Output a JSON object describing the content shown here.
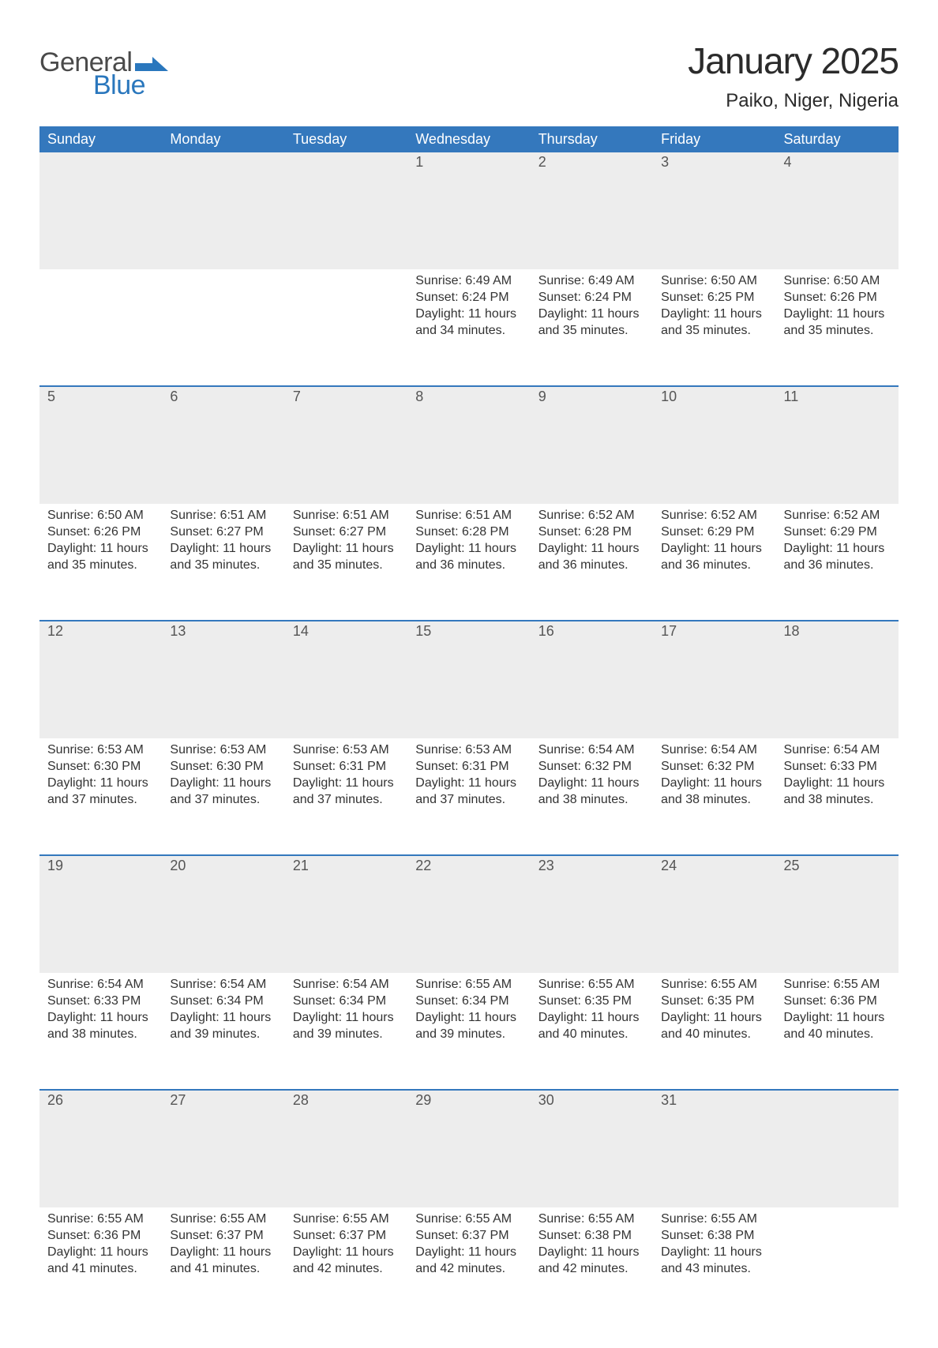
{
  "brand": {
    "text1": "General",
    "text2": "Blue",
    "text1_color": "#4a4a4a",
    "text2_color": "#2a77bd",
    "shape_color": "#2a77bd",
    "fontsize": 34
  },
  "header": {
    "month_title": "January 2025",
    "location": "Paiko, Niger, Nigeria",
    "title_fontsize": 46,
    "location_fontsize": 24,
    "title_color": "#2b2b2b"
  },
  "calendar": {
    "header_bg": "#3478bd",
    "header_fg": "#ffffff",
    "daynum_bg": "#ededed",
    "daynum_fg": "#555555",
    "sep_color": "#3478bd",
    "body_fontsize": 16,
    "header_fontsize": 18,
    "day_columns": [
      "Sunday",
      "Monday",
      "Tuesday",
      "Wednesday",
      "Thursday",
      "Friday",
      "Saturday"
    ],
    "weeks": [
      [
        null,
        null,
        null,
        {
          "n": "1",
          "sunrise": "Sunrise: 6:49 AM",
          "sunset": "Sunset: 6:24 PM",
          "daylight": "Daylight: 11 hours and 34 minutes."
        },
        {
          "n": "2",
          "sunrise": "Sunrise: 6:49 AM",
          "sunset": "Sunset: 6:24 PM",
          "daylight": "Daylight: 11 hours and 35 minutes."
        },
        {
          "n": "3",
          "sunrise": "Sunrise: 6:50 AM",
          "sunset": "Sunset: 6:25 PM",
          "daylight": "Daylight: 11 hours and 35 minutes."
        },
        {
          "n": "4",
          "sunrise": "Sunrise: 6:50 AM",
          "sunset": "Sunset: 6:26 PM",
          "daylight": "Daylight: 11 hours and 35 minutes."
        }
      ],
      [
        {
          "n": "5",
          "sunrise": "Sunrise: 6:50 AM",
          "sunset": "Sunset: 6:26 PM",
          "daylight": "Daylight: 11 hours and 35 minutes."
        },
        {
          "n": "6",
          "sunrise": "Sunrise: 6:51 AM",
          "sunset": "Sunset: 6:27 PM",
          "daylight": "Daylight: 11 hours and 35 minutes."
        },
        {
          "n": "7",
          "sunrise": "Sunrise: 6:51 AM",
          "sunset": "Sunset: 6:27 PM",
          "daylight": "Daylight: 11 hours and 35 minutes."
        },
        {
          "n": "8",
          "sunrise": "Sunrise: 6:51 AM",
          "sunset": "Sunset: 6:28 PM",
          "daylight": "Daylight: 11 hours and 36 minutes."
        },
        {
          "n": "9",
          "sunrise": "Sunrise: 6:52 AM",
          "sunset": "Sunset: 6:28 PM",
          "daylight": "Daylight: 11 hours and 36 minutes."
        },
        {
          "n": "10",
          "sunrise": "Sunrise: 6:52 AM",
          "sunset": "Sunset: 6:29 PM",
          "daylight": "Daylight: 11 hours and 36 minutes."
        },
        {
          "n": "11",
          "sunrise": "Sunrise: 6:52 AM",
          "sunset": "Sunset: 6:29 PM",
          "daylight": "Daylight: 11 hours and 36 minutes."
        }
      ],
      [
        {
          "n": "12",
          "sunrise": "Sunrise: 6:53 AM",
          "sunset": "Sunset: 6:30 PM",
          "daylight": "Daylight: 11 hours and 37 minutes."
        },
        {
          "n": "13",
          "sunrise": "Sunrise: 6:53 AM",
          "sunset": "Sunset: 6:30 PM",
          "daylight": "Daylight: 11 hours and 37 minutes."
        },
        {
          "n": "14",
          "sunrise": "Sunrise: 6:53 AM",
          "sunset": "Sunset: 6:31 PM",
          "daylight": "Daylight: 11 hours and 37 minutes."
        },
        {
          "n": "15",
          "sunrise": "Sunrise: 6:53 AM",
          "sunset": "Sunset: 6:31 PM",
          "daylight": "Daylight: 11 hours and 37 minutes."
        },
        {
          "n": "16",
          "sunrise": "Sunrise: 6:54 AM",
          "sunset": "Sunset: 6:32 PM",
          "daylight": "Daylight: 11 hours and 38 minutes."
        },
        {
          "n": "17",
          "sunrise": "Sunrise: 6:54 AM",
          "sunset": "Sunset: 6:32 PM",
          "daylight": "Daylight: 11 hours and 38 minutes."
        },
        {
          "n": "18",
          "sunrise": "Sunrise: 6:54 AM",
          "sunset": "Sunset: 6:33 PM",
          "daylight": "Daylight: 11 hours and 38 minutes."
        }
      ],
      [
        {
          "n": "19",
          "sunrise": "Sunrise: 6:54 AM",
          "sunset": "Sunset: 6:33 PM",
          "daylight": "Daylight: 11 hours and 38 minutes."
        },
        {
          "n": "20",
          "sunrise": "Sunrise: 6:54 AM",
          "sunset": "Sunset: 6:34 PM",
          "daylight": "Daylight: 11 hours and 39 minutes."
        },
        {
          "n": "21",
          "sunrise": "Sunrise: 6:54 AM",
          "sunset": "Sunset: 6:34 PM",
          "daylight": "Daylight: 11 hours and 39 minutes."
        },
        {
          "n": "22",
          "sunrise": "Sunrise: 6:55 AM",
          "sunset": "Sunset: 6:34 PM",
          "daylight": "Daylight: 11 hours and 39 minutes."
        },
        {
          "n": "23",
          "sunrise": "Sunrise: 6:55 AM",
          "sunset": "Sunset: 6:35 PM",
          "daylight": "Daylight: 11 hours and 40 minutes."
        },
        {
          "n": "24",
          "sunrise": "Sunrise: 6:55 AM",
          "sunset": "Sunset: 6:35 PM",
          "daylight": "Daylight: 11 hours and 40 minutes."
        },
        {
          "n": "25",
          "sunrise": "Sunrise: 6:55 AM",
          "sunset": "Sunset: 6:36 PM",
          "daylight": "Daylight: 11 hours and 40 minutes."
        }
      ],
      [
        {
          "n": "26",
          "sunrise": "Sunrise: 6:55 AM",
          "sunset": "Sunset: 6:36 PM",
          "daylight": "Daylight: 11 hours and 41 minutes."
        },
        {
          "n": "27",
          "sunrise": "Sunrise: 6:55 AM",
          "sunset": "Sunset: 6:37 PM",
          "daylight": "Daylight: 11 hours and 41 minutes."
        },
        {
          "n": "28",
          "sunrise": "Sunrise: 6:55 AM",
          "sunset": "Sunset: 6:37 PM",
          "daylight": "Daylight: 11 hours and 42 minutes."
        },
        {
          "n": "29",
          "sunrise": "Sunrise: 6:55 AM",
          "sunset": "Sunset: 6:37 PM",
          "daylight": "Daylight: 11 hours and 42 minutes."
        },
        {
          "n": "30",
          "sunrise": "Sunrise: 6:55 AM",
          "sunset": "Sunset: 6:38 PM",
          "daylight": "Daylight: 11 hours and 42 minutes."
        },
        {
          "n": "31",
          "sunrise": "Sunrise: 6:55 AM",
          "sunset": "Sunset: 6:38 PM",
          "daylight": "Daylight: 11 hours and 43 minutes."
        },
        null
      ]
    ]
  }
}
